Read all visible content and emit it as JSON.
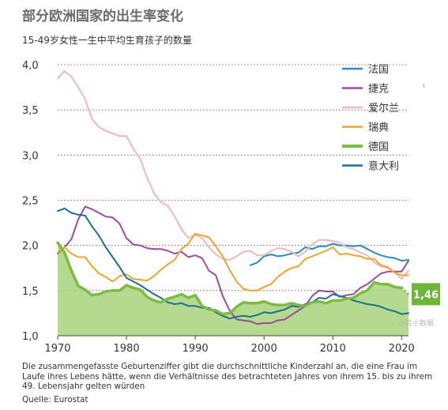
{
  "title": "部分欧洲国家的出生率变化",
  "subtitle": "15-49岁女性一生中平均生育孩子的数量",
  "footnote": "Die zusammengefasste Geburtenziffer gibt die durchschnittliche Kinderzahl an, die eine Frau im Laufe ihres Lebens hätte, wenn die Verhältnisse des betrachteten Jahres von ihrem 15. bis zu ihrem 49. Lebensjahr gelten würden",
  "source": "Quelle: Eurostat",
  "stray_marks": {
    "right_mark": "ı",
    "watermark": "小芸小数据"
  },
  "chart_data": {
    "type": "line",
    "title": "部分欧洲国家的出生率变化",
    "subtitle": "15-49岁女性一生中平均生育孩子的数量",
    "xlabel": "",
    "ylabel": "",
    "xlim": [
      1970,
      2021
    ],
    "ylim": [
      1.0,
      4.0
    ],
    "x_ticks": [
      1970,
      1980,
      1990,
      2000,
      2010,
      2020
    ],
    "y_ticks": [
      1.0,
      1.5,
      2.0,
      2.5,
      3.0,
      3.5,
      4.0
    ],
    "y_tick_labels": [
      "1,0",
      "1,5",
      "2,0",
      "2,5",
      "3,0",
      "3,5",
      "4,0"
    ],
    "grid": "horizontal dotted",
    "legend_position": "top-right",
    "end_label": {
      "series": "德国",
      "x": 2021,
      "y": 1.46,
      "text": "1,46"
    },
    "series": [
      {
        "name": "法国",
        "color": "#2b8bbf",
        "width": 2,
        "points": [
          [
            1998,
            1.78
          ],
          [
            1999,
            1.81
          ],
          [
            2000,
            1.88
          ],
          [
            2001,
            1.9
          ],
          [
            2002,
            1.88
          ],
          [
            2003,
            1.89
          ],
          [
            2004,
            1.91
          ],
          [
            2005,
            1.92
          ],
          [
            2006,
            1.98
          ],
          [
            2007,
            1.96
          ],
          [
            2008,
            1.99
          ],
          [
            2009,
            1.99
          ],
          [
            2010,
            2.02
          ],
          [
            2011,
            2.0
          ],
          [
            2012,
            2.0
          ],
          [
            2013,
            1.99
          ],
          [
            2014,
            2.0
          ],
          [
            2015,
            1.96
          ],
          [
            2016,
            1.92
          ],
          [
            2017,
            1.89
          ],
          [
            2018,
            1.87
          ],
          [
            2019,
            1.86
          ],
          [
            2020,
            1.83
          ],
          [
            2021,
            1.84
          ]
        ]
      },
      {
        "name": "捷克",
        "color": "#9c4c9b",
        "width": 2,
        "points": [
          [
            1970,
            1.91
          ],
          [
            1971,
            1.98
          ],
          [
            1972,
            2.07
          ],
          [
            1973,
            2.29
          ],
          [
            1974,
            2.43
          ],
          [
            1975,
            2.4
          ],
          [
            1976,
            2.36
          ],
          [
            1977,
            2.32
          ],
          [
            1978,
            2.31
          ],
          [
            1979,
            2.24
          ],
          [
            1980,
            2.08
          ],
          [
            1981,
            2.01
          ],
          [
            1982,
            2.0
          ],
          [
            1983,
            1.97
          ],
          [
            1984,
            1.96
          ],
          [
            1985,
            1.96
          ],
          [
            1986,
            1.94
          ],
          [
            1987,
            1.91
          ],
          [
            1988,
            1.93
          ],
          [
            1989,
            1.87
          ],
          [
            1990,
            1.89
          ],
          [
            1991,
            1.86
          ],
          [
            1992,
            1.72
          ],
          [
            1993,
            1.67
          ],
          [
            1994,
            1.44
          ],
          [
            1995,
            1.28
          ],
          [
            1996,
            1.18
          ],
          [
            1997,
            1.17
          ],
          [
            1998,
            1.16
          ],
          [
            1999,
            1.13
          ],
          [
            2000,
            1.14
          ],
          [
            2001,
            1.14
          ],
          [
            2002,
            1.17
          ],
          [
            2003,
            1.18
          ],
          [
            2004,
            1.23
          ],
          [
            2005,
            1.28
          ],
          [
            2006,
            1.33
          ],
          [
            2007,
            1.44
          ],
          [
            2008,
            1.5
          ],
          [
            2009,
            1.49
          ],
          [
            2010,
            1.49
          ],
          [
            2011,
            1.43
          ],
          [
            2012,
            1.45
          ],
          [
            2013,
            1.46
          ],
          [
            2014,
            1.53
          ],
          [
            2015,
            1.57
          ],
          [
            2016,
            1.63
          ],
          [
            2017,
            1.69
          ],
          [
            2018,
            1.71
          ],
          [
            2019,
            1.71
          ],
          [
            2020,
            1.71
          ],
          [
            2021,
            1.83
          ]
        ]
      },
      {
        "name": "爱尔兰",
        "color": "#f0b8b8",
        "width": 2,
        "points": [
          [
            1970,
            3.85
          ],
          [
            1971,
            3.93
          ],
          [
            1972,
            3.87
          ],
          [
            1973,
            3.75
          ],
          [
            1974,
            3.62
          ],
          [
            1975,
            3.4
          ],
          [
            1976,
            3.31
          ],
          [
            1977,
            3.27
          ],
          [
            1978,
            3.24
          ],
          [
            1979,
            3.21
          ],
          [
            1980,
            3.21
          ],
          [
            1981,
            3.07
          ],
          [
            1982,
            2.96
          ],
          [
            1983,
            2.75
          ],
          [
            1984,
            2.58
          ],
          [
            1985,
            2.48
          ],
          [
            1986,
            2.44
          ],
          [
            1987,
            2.32
          ],
          [
            1988,
            2.18
          ],
          [
            1989,
            2.08
          ],
          [
            1990,
            2.12
          ],
          [
            1991,
            2.08
          ],
          [
            1992,
            1.98
          ],
          [
            1993,
            1.9
          ],
          [
            1994,
            1.85
          ],
          [
            1995,
            1.84
          ],
          [
            1996,
            1.88
          ],
          [
            1997,
            1.93
          ],
          [
            1998,
            1.94
          ],
          [
            1999,
            1.89
          ],
          [
            2000,
            1.89
          ],
          [
            2001,
            1.94
          ],
          [
            2002,
            1.97
          ],
          [
            2003,
            1.96
          ],
          [
            2004,
            1.93
          ],
          [
            2005,
            1.88
          ],
          [
            2006,
            1.93
          ],
          [
            2007,
            2.01
          ],
          [
            2008,
            2.06
          ],
          [
            2009,
            2.06
          ],
          [
            2010,
            2.05
          ],
          [
            2011,
            2.03
          ],
          [
            2012,
            1.98
          ],
          [
            2013,
            1.96
          ],
          [
            2014,
            1.92
          ],
          [
            2015,
            1.89
          ],
          [
            2016,
            1.81
          ],
          [
            2017,
            1.77
          ],
          [
            2018,
            1.75
          ],
          [
            2019,
            1.7
          ],
          [
            2020,
            1.63
          ],
          [
            2021,
            1.72
          ]
        ]
      },
      {
        "name": "瑞典",
        "color": "#eaa62f",
        "width": 2,
        "points": [
          [
            1970,
            1.92
          ],
          [
            1971,
            1.98
          ],
          [
            1972,
            1.91
          ],
          [
            1973,
            1.87
          ],
          [
            1974,
            1.87
          ],
          [
            1975,
            1.77
          ],
          [
            1976,
            1.69
          ],
          [
            1977,
            1.65
          ],
          [
            1978,
            1.6
          ],
          [
            1979,
            1.66
          ],
          [
            1980,
            1.68
          ],
          [
            1981,
            1.63
          ],
          [
            1982,
            1.62
          ],
          [
            1983,
            1.61
          ],
          [
            1984,
            1.66
          ],
          [
            1985,
            1.73
          ],
          [
            1986,
            1.79
          ],
          [
            1987,
            1.84
          ],
          [
            1988,
            1.96
          ],
          [
            1989,
            2.02
          ],
          [
            1990,
            2.13
          ],
          [
            1991,
            2.11
          ],
          [
            1992,
            2.09
          ],
          [
            1993,
            1.99
          ],
          [
            1994,
            1.88
          ],
          [
            1995,
            1.73
          ],
          [
            1996,
            1.6
          ],
          [
            1997,
            1.52
          ],
          [
            1998,
            1.5
          ],
          [
            1999,
            1.5
          ],
          [
            2000,
            1.54
          ],
          [
            2001,
            1.57
          ],
          [
            2002,
            1.65
          ],
          [
            2003,
            1.71
          ],
          [
            2004,
            1.75
          ],
          [
            2005,
            1.77
          ],
          [
            2006,
            1.85
          ],
          [
            2007,
            1.88
          ],
          [
            2008,
            1.91
          ],
          [
            2009,
            1.94
          ],
          [
            2010,
            1.98
          ],
          [
            2011,
            1.9
          ],
          [
            2012,
            1.91
          ],
          [
            2013,
            1.89
          ],
          [
            2014,
            1.88
          ],
          [
            2015,
            1.85
          ],
          [
            2016,
            1.85
          ],
          [
            2017,
            1.78
          ],
          [
            2018,
            1.76
          ],
          [
            2019,
            1.7
          ],
          [
            2020,
            1.67
          ],
          [
            2021,
            1.67
          ]
        ]
      },
      {
        "name": "德国",
        "color": "#7dbb42",
        "width": 3.5,
        "area": true,
        "area_color": "#a9d27c",
        "points": [
          [
            1970,
            2.03
          ],
          [
            1971,
            1.92
          ],
          [
            1972,
            1.72
          ],
          [
            1973,
            1.55
          ],
          [
            1974,
            1.51
          ],
          [
            1975,
            1.45
          ],
          [
            1976,
            1.46
          ],
          [
            1977,
            1.49
          ],
          [
            1978,
            1.5
          ],
          [
            1979,
            1.5
          ],
          [
            1980,
            1.56
          ],
          [
            1981,
            1.53
          ],
          [
            1982,
            1.51
          ],
          [
            1983,
            1.43
          ],
          [
            1984,
            1.39
          ],
          [
            1985,
            1.37
          ],
          [
            1986,
            1.41
          ],
          [
            1987,
            1.43
          ],
          [
            1988,
            1.46
          ],
          [
            1989,
            1.42
          ],
          [
            1990,
            1.45
          ],
          [
            1991,
            1.33
          ],
          [
            1992,
            1.29
          ],
          [
            1993,
            1.28
          ],
          [
            1994,
            1.24
          ],
          [
            1995,
            1.25
          ],
          [
            1996,
            1.32
          ],
          [
            1997,
            1.37
          ],
          [
            1998,
            1.36
          ],
          [
            1999,
            1.36
          ],
          [
            2000,
            1.38
          ],
          [
            2001,
            1.35
          ],
          [
            2002,
            1.34
          ],
          [
            2003,
            1.34
          ],
          [
            2004,
            1.36
          ],
          [
            2005,
            1.34
          ],
          [
            2006,
            1.33
          ],
          [
            2007,
            1.37
          ],
          [
            2008,
            1.38
          ],
          [
            2009,
            1.36
          ],
          [
            2010,
            1.39
          ],
          [
            2011,
            1.39
          ],
          [
            2012,
            1.41
          ],
          [
            2013,
            1.42
          ],
          [
            2014,
            1.47
          ],
          [
            2015,
            1.5
          ],
          [
            2016,
            1.59
          ],
          [
            2017,
            1.57
          ],
          [
            2018,
            1.57
          ],
          [
            2019,
            1.54
          ],
          [
            2020,
            1.53
          ],
          [
            2021,
            1.46
          ]
        ]
      },
      {
        "name": "意大利",
        "color": "#1d6f8e",
        "width": 2,
        "points": [
          [
            1970,
            2.38
          ],
          [
            1971,
            2.41
          ],
          [
            1972,
            2.36
          ],
          [
            1973,
            2.34
          ],
          [
            1974,
            2.33
          ],
          [
            1975,
            2.21
          ],
          [
            1976,
            2.11
          ],
          [
            1977,
            1.98
          ],
          [
            1978,
            1.87
          ],
          [
            1979,
            1.76
          ],
          [
            1980,
            1.64
          ],
          [
            1981,
            1.6
          ],
          [
            1982,
            1.56
          ],
          [
            1983,
            1.51
          ],
          [
            1984,
            1.46
          ],
          [
            1985,
            1.42
          ],
          [
            1986,
            1.37
          ],
          [
            1987,
            1.35
          ],
          [
            1988,
            1.36
          ],
          [
            1989,
            1.33
          ],
          [
            1990,
            1.33
          ],
          [
            1991,
            1.31
          ],
          [
            1992,
            1.31
          ],
          [
            1993,
            1.26
          ],
          [
            1994,
            1.22
          ],
          [
            1995,
            1.19
          ],
          [
            1996,
            1.21
          ],
          [
            1997,
            1.22
          ],
          [
            1998,
            1.21
          ],
          [
            1999,
            1.23
          ],
          [
            2000,
            1.26
          ],
          [
            2001,
            1.25
          ],
          [
            2002,
            1.27
          ],
          [
            2003,
            1.29
          ],
          [
            2004,
            1.33
          ],
          [
            2005,
            1.32
          ],
          [
            2006,
            1.35
          ],
          [
            2007,
            1.37
          ],
          [
            2008,
            1.42
          ],
          [
            2009,
            1.41
          ],
          [
            2010,
            1.46
          ],
          [
            2011,
            1.44
          ],
          [
            2012,
            1.42
          ],
          [
            2013,
            1.39
          ],
          [
            2014,
            1.37
          ],
          [
            2015,
            1.35
          ],
          [
            2016,
            1.34
          ],
          [
            2017,
            1.32
          ],
          [
            2018,
            1.29
          ],
          [
            2019,
            1.27
          ],
          [
            2020,
            1.24
          ],
          [
            2021,
            1.25
          ]
        ]
      }
    ]
  }
}
